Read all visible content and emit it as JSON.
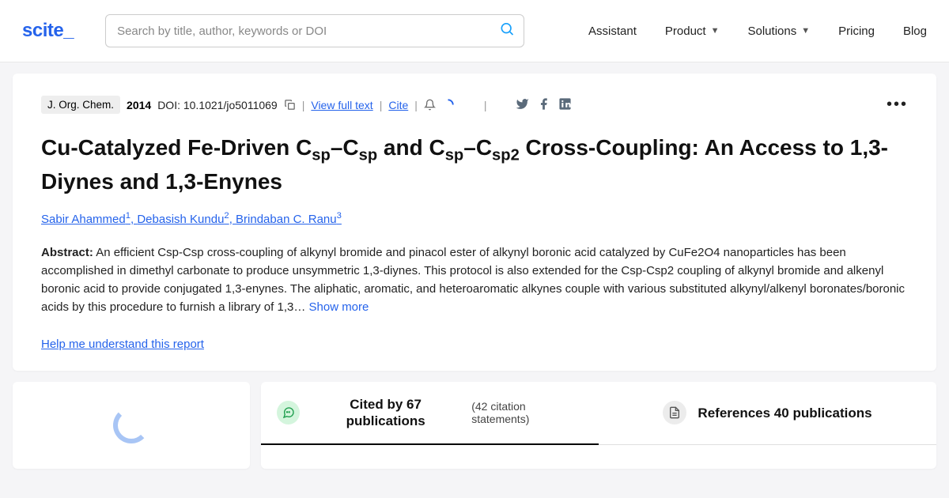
{
  "header": {
    "logo": "scite_",
    "search_placeholder": "Search by title, author, keywords or DOI",
    "nav": {
      "assistant": "Assistant",
      "product": "Product",
      "solutions": "Solutions",
      "pricing": "Pricing",
      "blog": "Blog"
    }
  },
  "card": {
    "journal": "J. Org. Chem.",
    "year": "2014",
    "doi_label": "DOI: 10.1021/jo5011069",
    "view_full_text": "View full text",
    "cite": "Cite",
    "title_html": "Cu-Catalyzed Fe-Driven C<sub>sp</sub>–C<sub>sp</sub> and C<sub>sp</sub>–C<sub>sp2</sub> Cross-Coupling: An Access to 1,3-Diynes and 1,3-Enynes",
    "authors": [
      {
        "name": "Sabir Ahammed",
        "sup": "1"
      },
      {
        "name": "Debasish Kundu",
        "sup": "2"
      },
      {
        "name": "Brindaban C. Ranu",
        "sup": "3"
      }
    ],
    "abstract_label": "Abstract:",
    "abstract_text": " An efficient Csp-Csp cross-coupling of alkynyl bromide and pinacol ester of alkynyl boronic acid catalyzed by CuFe2O4 nanoparticles has been accomplished in dimethyl carbonate to produce unsymmetric 1,3-diynes. This protocol is also extended for the Csp-Csp2 coupling of alkynyl bromide and alkenyl boronic acid to provide conjugated 1,3-enynes. The aliphatic, aromatic, and heteroaromatic alkynes couple with various substituted alkynyl/alkenyl boronates/boronic acids by this procedure to furnish a library of 1,3… ",
    "show_more": "Show more",
    "help_link": "Help me understand this report"
  },
  "tabs": {
    "cited_by": "Cited by 67 publications",
    "cited_sub": "(42 citation statements)",
    "references": "References 40 publications"
  },
  "colors": {
    "brand": "#2563eb",
    "bg": "#f5f5f7",
    "social": "#5a6a7a",
    "tab_green_bg": "#d4f5dd",
    "tab_green_fg": "#1a9c4a",
    "spinner": "#a8c5f5"
  }
}
